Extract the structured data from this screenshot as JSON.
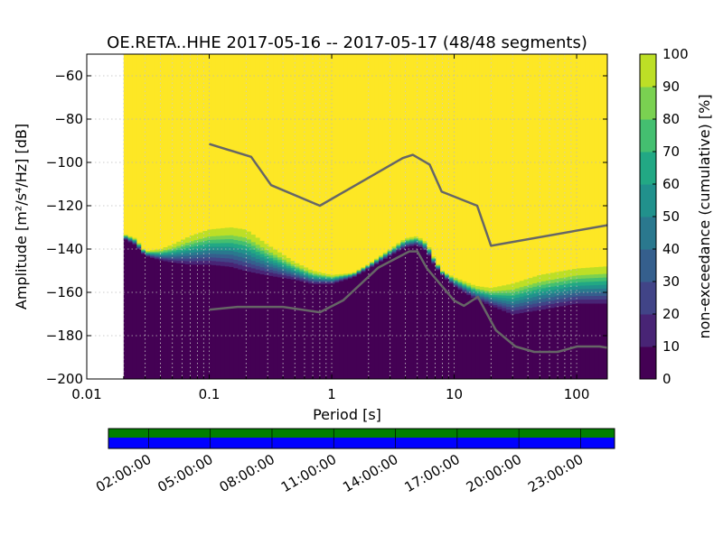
{
  "chart_data": {
    "type": "heatmap",
    "title": "OE.RETA..HHE   2017-05-16 -- 2017-05-17  (48/48 segments)",
    "xlabel": "Period [s]",
    "ylabel": "Amplitude [m²/s⁴/Hz] [dB]",
    "x_scale": "log",
    "xlim": [
      0.01,
      178
    ],
    "ylim": [
      -200,
      -50
    ],
    "x_ticks": [
      {
        "value": 0.01,
        "label": "0.01"
      },
      {
        "value": 0.1,
        "label": "0.1"
      },
      {
        "value": 1,
        "label": "1"
      },
      {
        "value": 10,
        "label": "10"
      },
      {
        "value": 100,
        "label": "100"
      }
    ],
    "y_ticks": [
      -60,
      -80,
      -100,
      -120,
      -140,
      -160,
      -180,
      -200
    ],
    "y_tick_labels": [
      "−60",
      "−80",
      "−100",
      "−120",
      "−140",
      "−160",
      "−180",
      "−200"
    ],
    "data_start_period": 0.02,
    "psd_envelope": {
      "periods": [
        0.02,
        0.025,
        0.03,
        0.04,
        0.05,
        0.07,
        0.1,
        0.15,
        0.2,
        0.3,
        0.5,
        0.7,
        1.0,
        1.5,
        2.0,
        3.0,
        4.0,
        5.0,
        6.0,
        7.0,
        8.0,
        10.0,
        15.0,
        20.0,
        30.0,
        50.0,
        100.0,
        178.0
      ],
      "low_db": [
        -135,
        -138,
        -143,
        -145,
        -146,
        -147,
        -147,
        -148,
        -150,
        -152,
        -154,
        -156,
        -156,
        -153,
        -149,
        -143,
        -139,
        -138,
        -141,
        -148,
        -152,
        -157,
        -163,
        -166,
        -170,
        -168,
        -165,
        -165
      ],
      "high_db": [
        -133,
        -135,
        -141,
        -140,
        -138,
        -134,
        -131,
        -130,
        -131,
        -138,
        -146,
        -150,
        -152,
        -151,
        -147,
        -140,
        -135,
        -134,
        -137,
        -145,
        -150,
        -153,
        -157,
        -158,
        -156,
        -152,
        -149,
        -148
      ]
    },
    "nhnm": {
      "periods": [
        0.1,
        0.22,
        0.32,
        0.8,
        3.8,
        4.6,
        6.3,
        7.9,
        15.4,
        20.0,
        178.0
      ],
      "db": [
        -91.5,
        -97.4,
        -110.5,
        -120.0,
        -98.0,
        -96.5,
        -101.0,
        -113.5,
        -120.0,
        -138.5,
        -129.0
      ]
    },
    "nlnm": {
      "periods": [
        0.1,
        0.17,
        0.4,
        0.8,
        1.24,
        2.4,
        4.3,
        5.0,
        6.0,
        10.0,
        12.0,
        15.6,
        21.9,
        31.6,
        45.0,
        70.0,
        101.0,
        154.0,
        178.0
      ],
      "db": [
        -168.0,
        -166.7,
        -166.7,
        -169.2,
        -163.7,
        -148.6,
        -141.1,
        -141.1,
        -149.0,
        -163.8,
        -166.2,
        -162.1,
        -177.5,
        -185.0,
        -187.5,
        -187.5,
        -185.0,
        -185.0,
        -185.6
      ]
    },
    "colorbar": {
      "label": "non-exceedance (cumulative) [%]",
      "range": [
        0,
        100
      ],
      "ticks": [
        "0",
        "10",
        "20",
        "30",
        "40",
        "50",
        "60",
        "70",
        "80",
        "90",
        "100"
      ],
      "colors": [
        "#440154",
        "#482475",
        "#414487",
        "#355f8d",
        "#2a788e",
        "#21918c",
        "#22a884",
        "#44bf70",
        "#7ad151",
        "#bddf26",
        "#fde725"
      ]
    },
    "timeline": {
      "tick_labels": [
        "02:00:00",
        "05:00:00",
        "08:00:00",
        "11:00:00",
        "14:00:00",
        "17:00:00",
        "20:00:00",
        "23:00:00"
      ],
      "data_coverage_color": "#008000",
      "gap_free_color": "#0000ff"
    },
    "reference_line_color": "#666666"
  }
}
